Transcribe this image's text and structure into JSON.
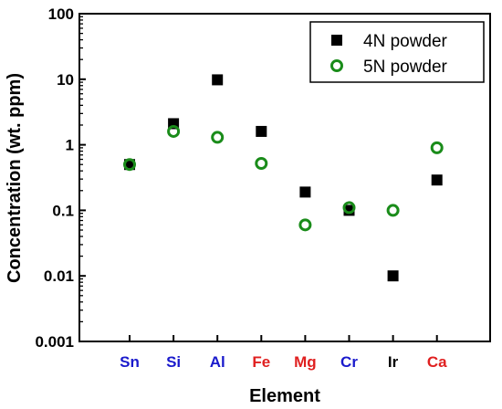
{
  "chart_data": {
    "type": "scatter",
    "xlabel": "Element",
    "ylabel": "Concentration (wt. ppm)",
    "yscale": "log",
    "ylim": [
      0.001,
      100
    ],
    "grid": false,
    "legend_position": "top-right",
    "categories": [
      "Sn",
      "Si",
      "Al",
      "Fe",
      "Mg",
      "Cr",
      "Ir",
      "Ca"
    ],
    "category_colors": [
      "#1a1acc",
      "#1a1acc",
      "#1a1acc",
      "#e02020",
      "#e02020",
      "#1a1acc",
      "#000000",
      "#e02020"
    ],
    "y_ticks": [
      {
        "value": 0.001,
        "label": "0.001"
      },
      {
        "value": 0.01,
        "label": "0.01"
      },
      {
        "value": 0.1,
        "label": "0.1"
      },
      {
        "value": 1,
        "label": "1"
      },
      {
        "value": 10,
        "label": "10"
      },
      {
        "value": 100,
        "label": "100"
      }
    ],
    "series": [
      {
        "name": "4N powder",
        "marker": "filled-square",
        "color": "#000000",
        "values": [
          0.5,
          2.1,
          9.8,
          1.6,
          0.19,
          0.1,
          0.01,
          0.29
        ]
      },
      {
        "name": "5N powder",
        "marker": "open-circle",
        "color": "#1a8c1a",
        "values": [
          0.5,
          1.6,
          1.3,
          0.52,
          0.06,
          0.11,
          0.1,
          0.9
        ]
      }
    ]
  }
}
